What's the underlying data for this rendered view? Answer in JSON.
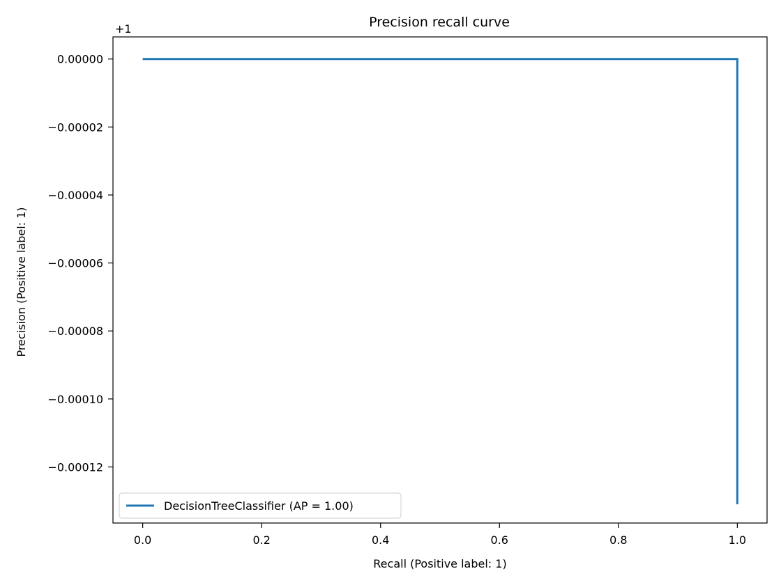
{
  "chart_data": {
    "type": "line",
    "title": "Precision recall curve",
    "xlabel": "Recall (Positive label: 1)",
    "ylabel": "Precision (Positive label: 1)",
    "y_offset_label": "+1",
    "xlim": [
      -0.05,
      1.05
    ],
    "ylim": [
      -0.0001365,
      6.5e-06
    ],
    "x_ticks": [
      0.0,
      0.2,
      0.4,
      0.6,
      0.8,
      1.0
    ],
    "x_tick_labels": [
      "0.0",
      "0.2",
      "0.4",
      "0.6",
      "0.8",
      "1.0"
    ],
    "y_ticks": [
      0.0,
      -2e-05,
      -4e-05,
      -6e-05,
      -8e-05,
      -0.0001,
      -0.00012
    ],
    "y_tick_labels": [
      "0.00000",
      "−0.00002",
      "−0.00004",
      "−0.00006",
      "−0.00008",
      "−0.00010",
      "−0.00012"
    ],
    "grid": false,
    "legend_position": "lower-left",
    "series": [
      {
        "name": "DecisionTreeClassifier (AP = 1.00)",
        "color": "#1f77b4",
        "x": [
          0.0,
          1.0,
          1.0
        ],
        "y": [
          0.0,
          0.0,
          -0.000131
        ]
      }
    ]
  }
}
